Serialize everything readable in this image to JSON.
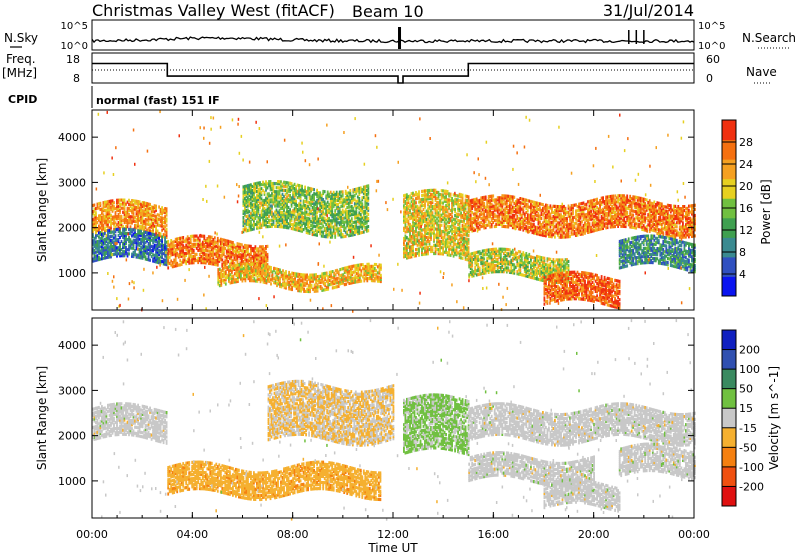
{
  "header": {
    "station": "Christmas Valley West (fitACF)",
    "beam": "Beam 10",
    "date": "31/Jul/2014",
    "cpid_label": "CPID",
    "cpid_value": "normal (fast) 151 IF"
  },
  "nsky_panel": {
    "left_label": "N.Sky",
    "right_label": "N.Search",
    "left_ticks": [
      "10^5",
      "10^0"
    ],
    "right_ticks": [
      "10^5",
      "10^0"
    ]
  },
  "freq_panel": {
    "left_label_line1": "Freq.",
    "left_label_line2": "[MHz]",
    "right_label": "Nave",
    "left_ticks": [
      "18",
      "8"
    ],
    "right_ticks": [
      "60",
      "0"
    ],
    "freq_steps": [
      {
        "t0": 0,
        "t1": 3,
        "mhz": 14.5
      },
      {
        "t0": 3,
        "t1": 12.2,
        "mhz": 10.3
      },
      {
        "t0": 12.2,
        "t1": 12.4,
        "mhz": 8.0
      },
      {
        "t0": 12.4,
        "t1": 15,
        "mhz": 10.3
      },
      {
        "t0": 15,
        "t1": 24,
        "mhz": 14.5
      }
    ]
  },
  "chart_data": [
    {
      "type": "heatmap",
      "name": "power",
      "ylabel": "Slant Range [km]",
      "yticks": [
        1000,
        2000,
        3000,
        4000
      ],
      "ylim": [
        180,
        4600
      ],
      "xlim": [
        0,
        24
      ],
      "colorbar_label": "Power [dB]",
      "colorbar_ticks": [
        4,
        8,
        12,
        16,
        20,
        24,
        28
      ],
      "colorbar_range": [
        0,
        32
      ],
      "colors": [
        "#0a14f0",
        "#3050c0",
        "#3a8a90",
        "#3fa050",
        "#70c040",
        "#e6d020",
        "#f5a020",
        "#f57010",
        "#f03010"
      ],
      "bands": [
        {
          "t": [
            0,
            3
          ],
          "r0": 1850,
          "r1": 2500,
          "db": 24
        },
        {
          "t": [
            0,
            3
          ],
          "r0": 1250,
          "r1": 1850,
          "db": 8
        },
        {
          "t": [
            3,
            7
          ],
          "r0": 1100,
          "r1": 1700,
          "db": 26
        },
        {
          "t": [
            5,
            11.5
          ],
          "r0": 700,
          "r1": 1100,
          "db": 22
        },
        {
          "t": [
            6,
            11
          ],
          "r0": 1900,
          "r1": 2900,
          "db": 16
        },
        {
          "t": [
            12.4,
            15
          ],
          "r0": 1300,
          "r1": 2700,
          "db": 20
        },
        {
          "t": [
            15,
            24
          ],
          "r0": 1900,
          "r1": 2600,
          "db": 26
        },
        {
          "t": [
            15,
            19
          ],
          "r0": 900,
          "r1": 1400,
          "db": 18
        },
        {
          "t": [
            18,
            21
          ],
          "r0": 300,
          "r1": 900,
          "db": 28
        },
        {
          "t": [
            21,
            24
          ],
          "r0": 1100,
          "r1": 1700,
          "db": 10
        }
      ]
    },
    {
      "type": "heatmap",
      "name": "velocity",
      "ylabel": "Slant Range [km]",
      "yticks": [
        1000,
        2000,
        3000,
        4000
      ],
      "ylim": [
        180,
        4600
      ],
      "xlim": [
        0,
        24
      ],
      "xlabel": "Time UT",
      "xticks": [
        "00:00",
        "04:00",
        "08:00",
        "12:00",
        "16:00",
        "20:00",
        "00:00"
      ],
      "xtick_hours": [
        0,
        4,
        8,
        12,
        16,
        20,
        24
      ],
      "colorbar_label": "Velocity [m s^-1]",
      "colorbar_ticks": [
        "200",
        "100",
        "50",
        "15",
        "-15",
        "-50",
        "-100",
        "-200"
      ],
      "colorbar_range": [
        -250,
        250
      ],
      "colors": [
        "#e01010",
        "#f05010",
        "#f58010",
        "#f5b030",
        "#c8c8c8",
        "#70c040",
        "#3a8a60",
        "#3050b0",
        "#1020c0"
      ],
      "bands": [
        {
          "t": [
            0,
            3
          ],
          "r0": 1900,
          "r1": 2600,
          "v": 0
        },
        {
          "t": [
            3,
            11.5
          ],
          "r0": 700,
          "r1": 1300,
          "v": -60
        },
        {
          "t": [
            7,
            12
          ],
          "r0": 1900,
          "r1": 3100,
          "v": -30
        },
        {
          "t": [
            12.4,
            15
          ],
          "r0": 1600,
          "r1": 2800,
          "v": 40
        },
        {
          "t": [
            15,
            24
          ],
          "r0": 1900,
          "r1": 2600,
          "v": 0
        },
        {
          "t": [
            15,
            20
          ],
          "r0": 1000,
          "r1": 1500,
          "v": 0
        },
        {
          "t": [
            18,
            21
          ],
          "r0": 400,
          "r1": 900,
          "v": 0
        },
        {
          "t": [
            21,
            24
          ],
          "r0": 1100,
          "r1": 1700,
          "v": 0
        }
      ]
    }
  ]
}
